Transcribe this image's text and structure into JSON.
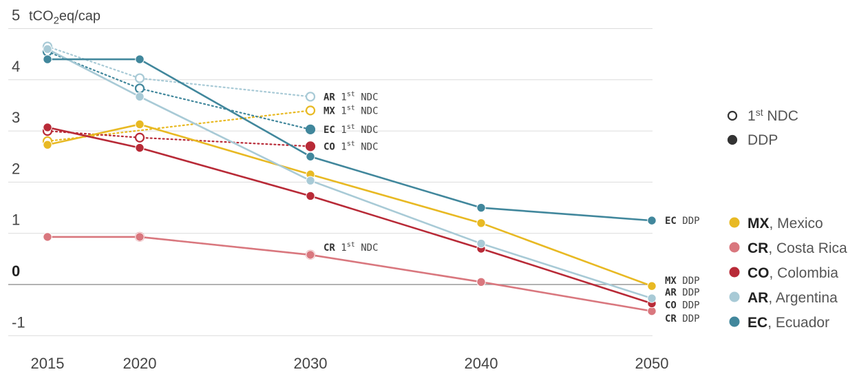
{
  "chart_data": {
    "type": "line",
    "ylabel": "tCO2eq/cap",
    "ylim": [
      -1,
      5
    ],
    "yticks": [
      "-1",
      "0",
      "1",
      "2",
      "3",
      "4",
      "5"
    ],
    "x": [
      "2015",
      "2020",
      "2030",
      "2040",
      "2050"
    ],
    "scenarios": {
      "ndc": "1st NDC",
      "ddp": "DDP"
    },
    "series": [
      {
        "code": "MX",
        "name": "Mexico",
        "color": "#e8b923",
        "ddp": [
          [
            2015,
            2.73
          ],
          [
            2020,
            3.13
          ],
          [
            2030,
            2.15
          ],
          [
            2040,
            1.2
          ],
          [
            2050,
            -0.03
          ]
        ],
        "ndc": [
          [
            2015,
            2.8
          ],
          [
            2030,
            3.4
          ]
        ],
        "ndc_label": "MX 1st NDC",
        "ddp_label": "MX DDP"
      },
      {
        "code": "CR",
        "name": "Costa Rica",
        "color": "#d9777e",
        "ddp": [
          [
            2015,
            0.93
          ],
          [
            2020,
            0.93
          ],
          [
            2030,
            0.58
          ],
          [
            2040,
            0.05
          ],
          [
            2050,
            -0.52
          ]
        ],
        "ndc": [
          [
            2020,
            0.93
          ],
          [
            2030,
            0.58
          ]
        ],
        "ndc_label": "CR 1st NDC",
        "ddp_label": "CR DDP"
      },
      {
        "code": "CO",
        "name": "Colombia",
        "color": "#b82a37",
        "ddp": [
          [
            2015,
            3.07
          ],
          [
            2020,
            2.67
          ],
          [
            2030,
            1.73
          ],
          [
            2040,
            0.7
          ],
          [
            2050,
            -0.37
          ]
        ],
        "ndc": [
          [
            2015,
            3.0
          ],
          [
            2020,
            2.87
          ],
          [
            2030,
            2.7
          ]
        ],
        "ndc_label": "CO 1st NDC",
        "ddp_label": "CO DDP"
      },
      {
        "code": "AR",
        "name": "Argentina",
        "color": "#a8cad6",
        "ddp": [
          [
            2015,
            4.6
          ],
          [
            2020,
            3.67
          ],
          [
            2030,
            2.03
          ],
          [
            2040,
            0.8
          ],
          [
            2050,
            -0.27
          ]
        ],
        "ndc": [
          [
            2015,
            4.65
          ],
          [
            2020,
            4.03
          ],
          [
            2030,
            3.67
          ]
        ],
        "ndc_label": "AR 1st NDC",
        "ddp_label": "AR DDP"
      },
      {
        "code": "EC",
        "name": "Ecuador",
        "color": "#41879c",
        "ddp": [
          [
            2015,
            4.4
          ],
          [
            2020,
            4.4
          ],
          [
            2030,
            2.5
          ],
          [
            2040,
            1.5
          ],
          [
            2050,
            1.25
          ]
        ],
        "ndc": [
          [
            2015,
            4.55
          ],
          [
            2020,
            3.83
          ],
          [
            2030,
            3.03
          ]
        ],
        "ndc_label": "EC 1st NDC",
        "ddp_label": "EC DDP"
      }
    ],
    "legend": {
      "placement": "right",
      "symbols": [
        {
          "label": "1st NDC",
          "style": "hollow"
        },
        {
          "label": "DDP",
          "style": "filled"
        }
      ],
      "countries": [
        {
          "code": "MX",
          "sep": ", ",
          "name": "Mexico"
        },
        {
          "code": "CR",
          "sep": ", ",
          "name": "Costa Rica"
        },
        {
          "code": "CO",
          "sep": ", ",
          "name": "Colombia"
        },
        {
          "code": "AR",
          "sep": ", ",
          "name": "Argentina"
        },
        {
          "code": "EC",
          "sep": ",  ",
          "name": "Ecuador"
        }
      ]
    },
    "grid": true
  }
}
